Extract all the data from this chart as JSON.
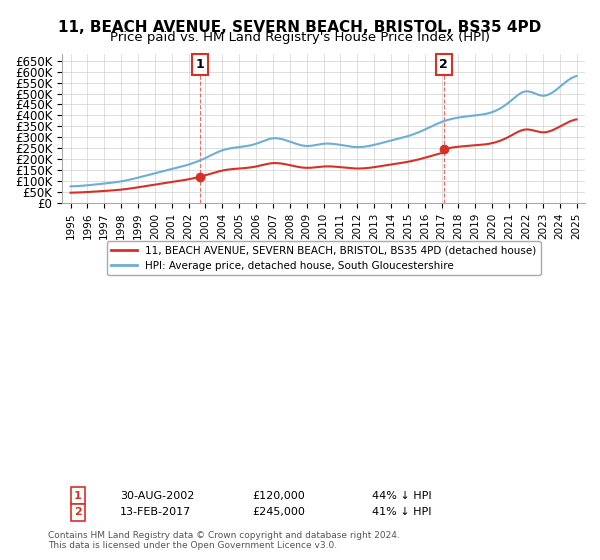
{
  "title": "11, BEACH AVENUE, SEVERN BEACH, BRISTOL, BS35 4PD",
  "subtitle": "Price paid vs. HM Land Registry's House Price Index (HPI)",
  "title_fontsize": 11,
  "subtitle_fontsize": 9.5,
  "ylabel_ticks": [
    "£0",
    "£50K",
    "£100K",
    "£150K",
    "£200K",
    "£250K",
    "£300K",
    "£350K",
    "£400K",
    "£450K",
    "£500K",
    "£550K",
    "£600K",
    "£650K"
  ],
  "ytick_values": [
    0,
    50000,
    100000,
    150000,
    200000,
    250000,
    300000,
    350000,
    400000,
    450000,
    500000,
    550000,
    600000,
    650000
  ],
  "ylim": [
    0,
    680000
  ],
  "hpi_color": "#6baed6",
  "price_color": "#d73027",
  "marker_color": "#d73027",
  "annotation_box_color": "#d73027",
  "legend_label_price": "11, BEACH AVENUE, SEVERN BEACH, BRISTOL, BS35 4PD (detached house)",
  "legend_label_hpi": "HPI: Average price, detached house, South Gloucestershire",
  "table_rows": [
    {
      "num": "1",
      "date": "30-AUG-2002",
      "price": "£120,000",
      "pct": "44% ↓ HPI"
    },
    {
      "num": "2",
      "date": "13-FEB-2017",
      "price": "£245,000",
      "pct": "41% ↓ HPI"
    }
  ],
  "footer": "Contains HM Land Registry data © Crown copyright and database right 2024.\nThis data is licensed under the Open Government Licence v3.0.",
  "sale1_x": 2002.67,
  "sale1_y": 120000,
  "sale2_x": 2017.12,
  "sale2_y": 245000,
  "vline1_x": 2002.67,
  "vline2_x": 2017.12,
  "xlim_start": 1994.5,
  "xlim_end": 2025.5
}
